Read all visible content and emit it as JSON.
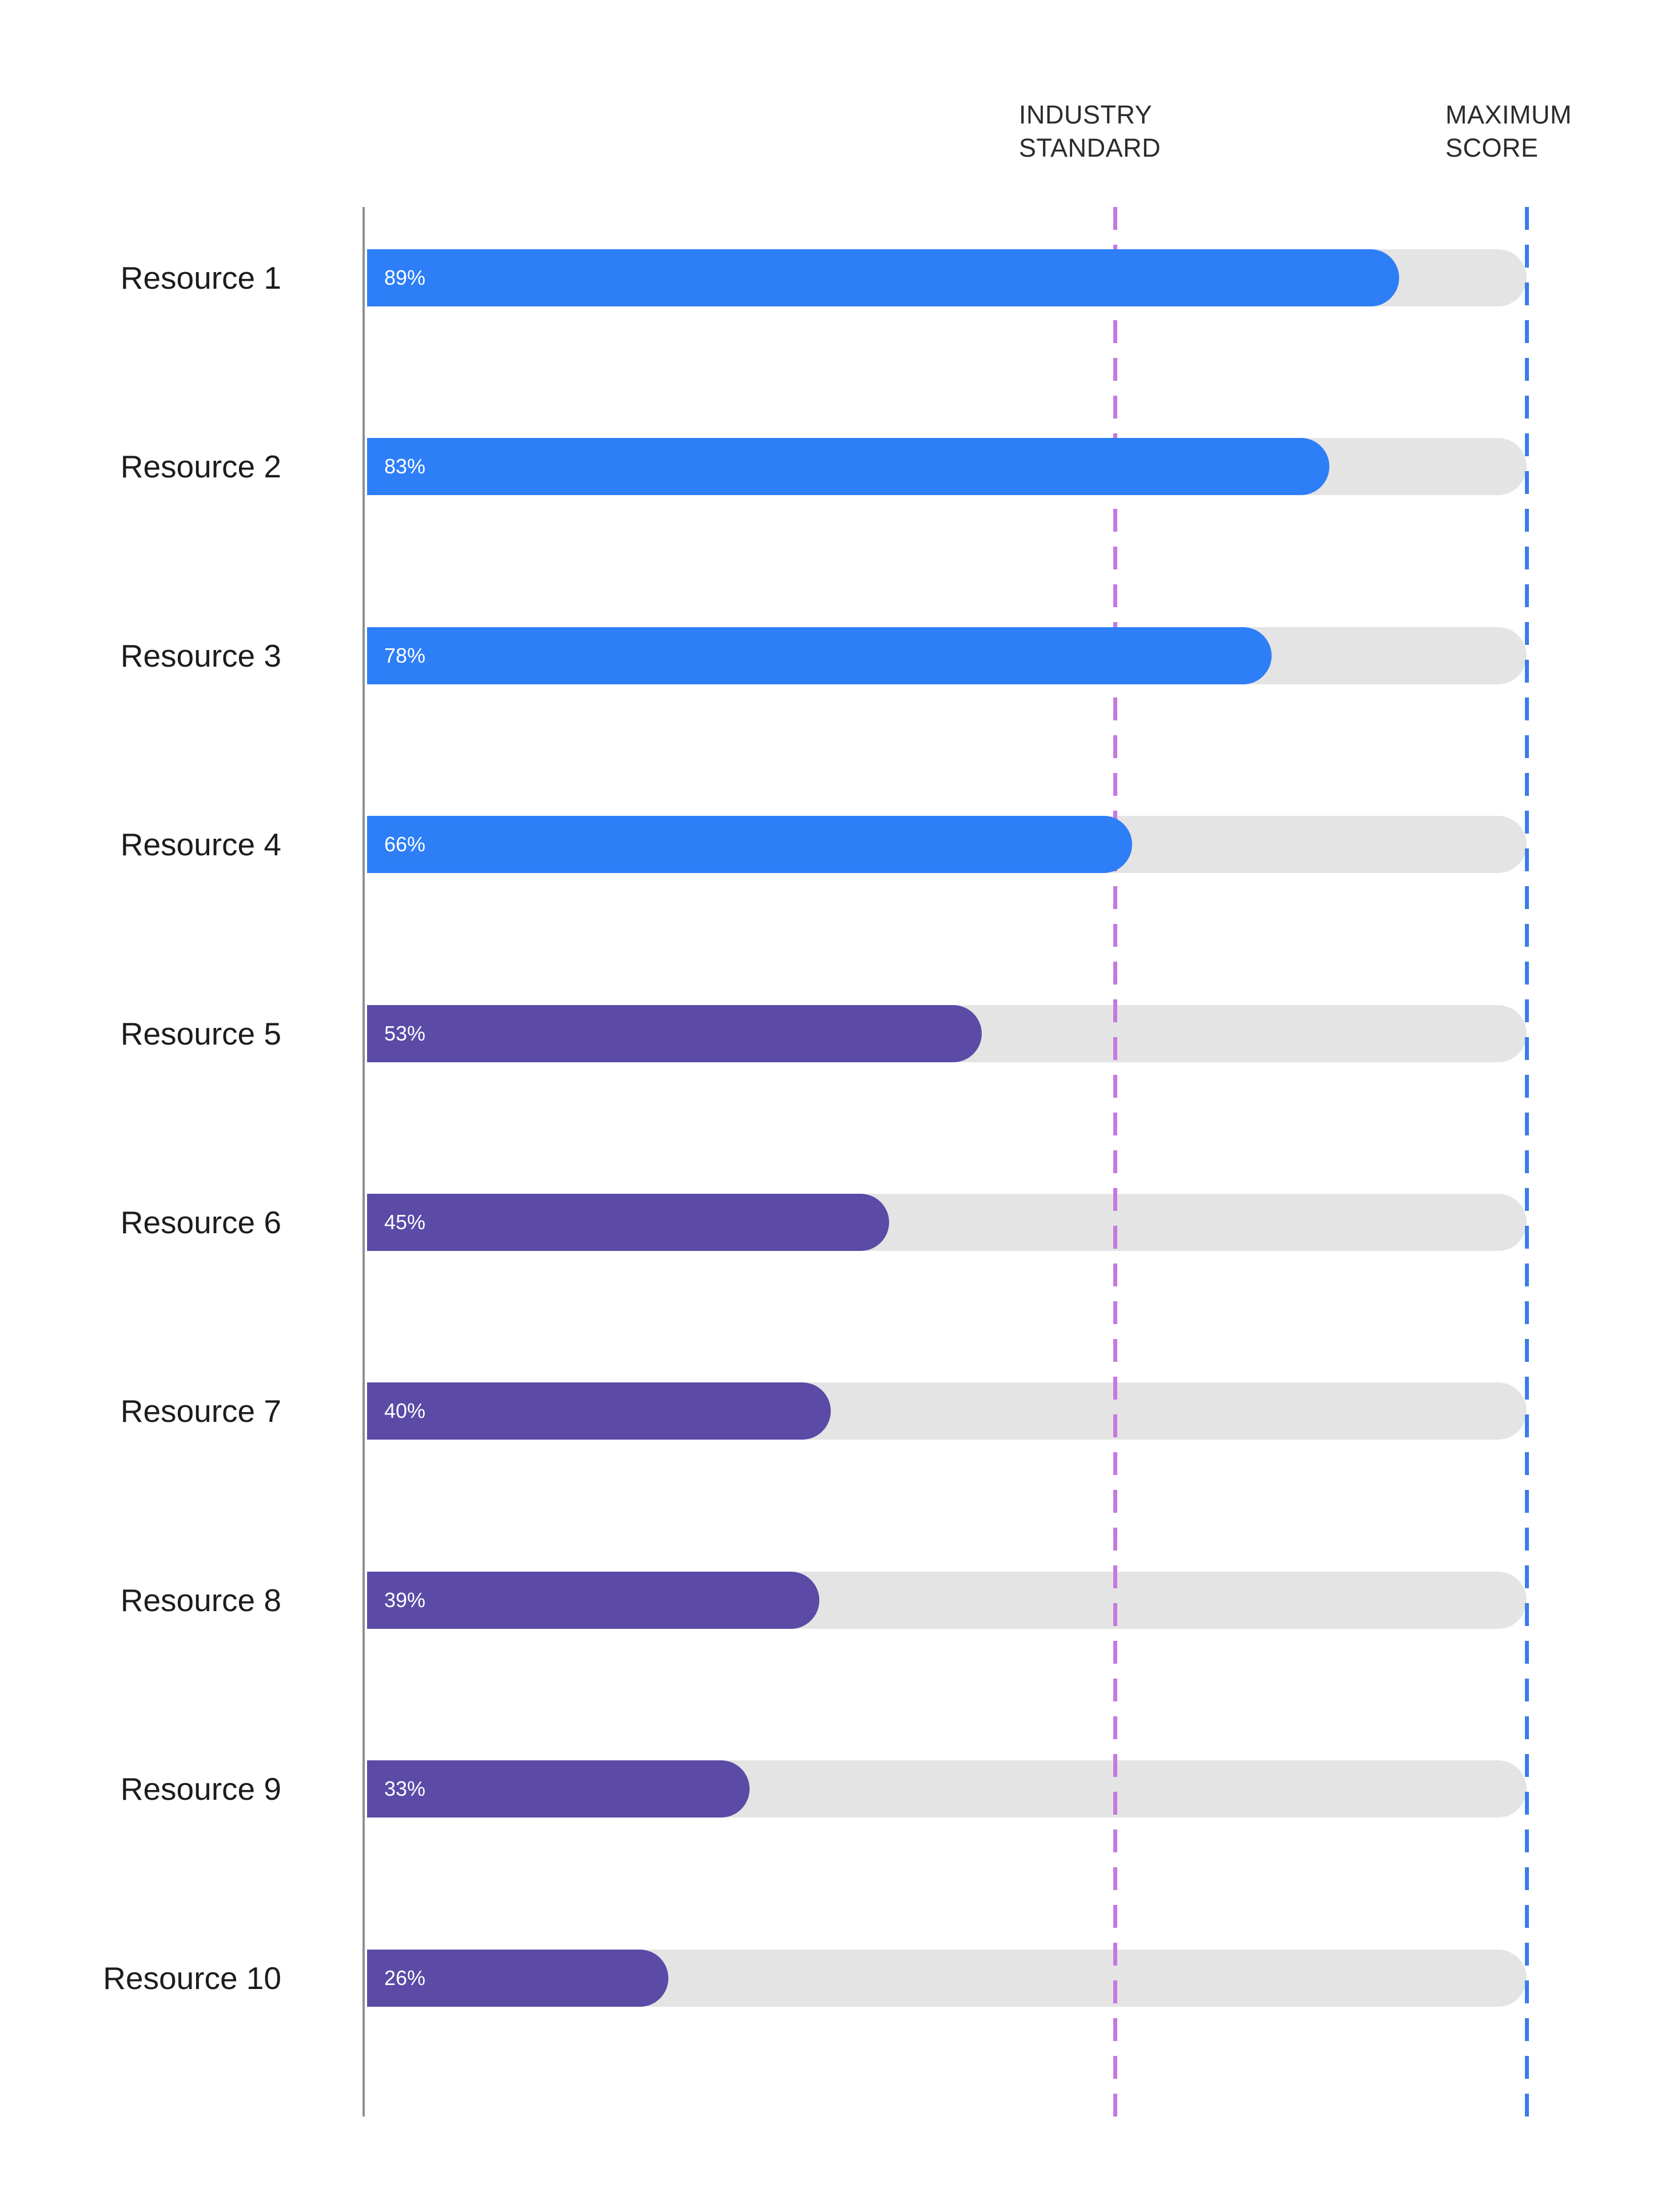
{
  "chart_data": {
    "type": "bar",
    "orientation": "horizontal",
    "categories": [
      "Resource 1",
      "Resource 2",
      "Resource 3",
      "Resource 4",
      "Resource 5",
      "Resource 6",
      "Resource 7",
      "Resource 8",
      "Resource 9",
      "Resource 10"
    ],
    "values": [
      89,
      83,
      78,
      66,
      53,
      45,
      40,
      39,
      33,
      26
    ],
    "value_labels": [
      "89%",
      "83%",
      "78%",
      "66%",
      "53%",
      "45%",
      "40%",
      "39%",
      "33%",
      "26%"
    ],
    "bar_colors": [
      "#2d7ef7",
      "#2d7ef7",
      "#2d7ef7",
      "#2d7ef7",
      "#5b4aa6",
      "#5b4aa6",
      "#5b4aa6",
      "#5b4aa6",
      "#5b4aa6",
      "#5b4aa6"
    ],
    "track_color": "#e4e4e4",
    "axis_color": "#8f8f8f",
    "xlim": [
      0,
      100
    ],
    "grid": "off",
    "legend": "none",
    "reference_lines": [
      {
        "label": "INDUSTRY STANDARD",
        "value": 64.5,
        "color": "#c678e0",
        "style": "dashed"
      },
      {
        "label": "MAXIMUM SCORE",
        "value": 100,
        "color": "#3a7de8",
        "style": "dashed"
      }
    ]
  }
}
